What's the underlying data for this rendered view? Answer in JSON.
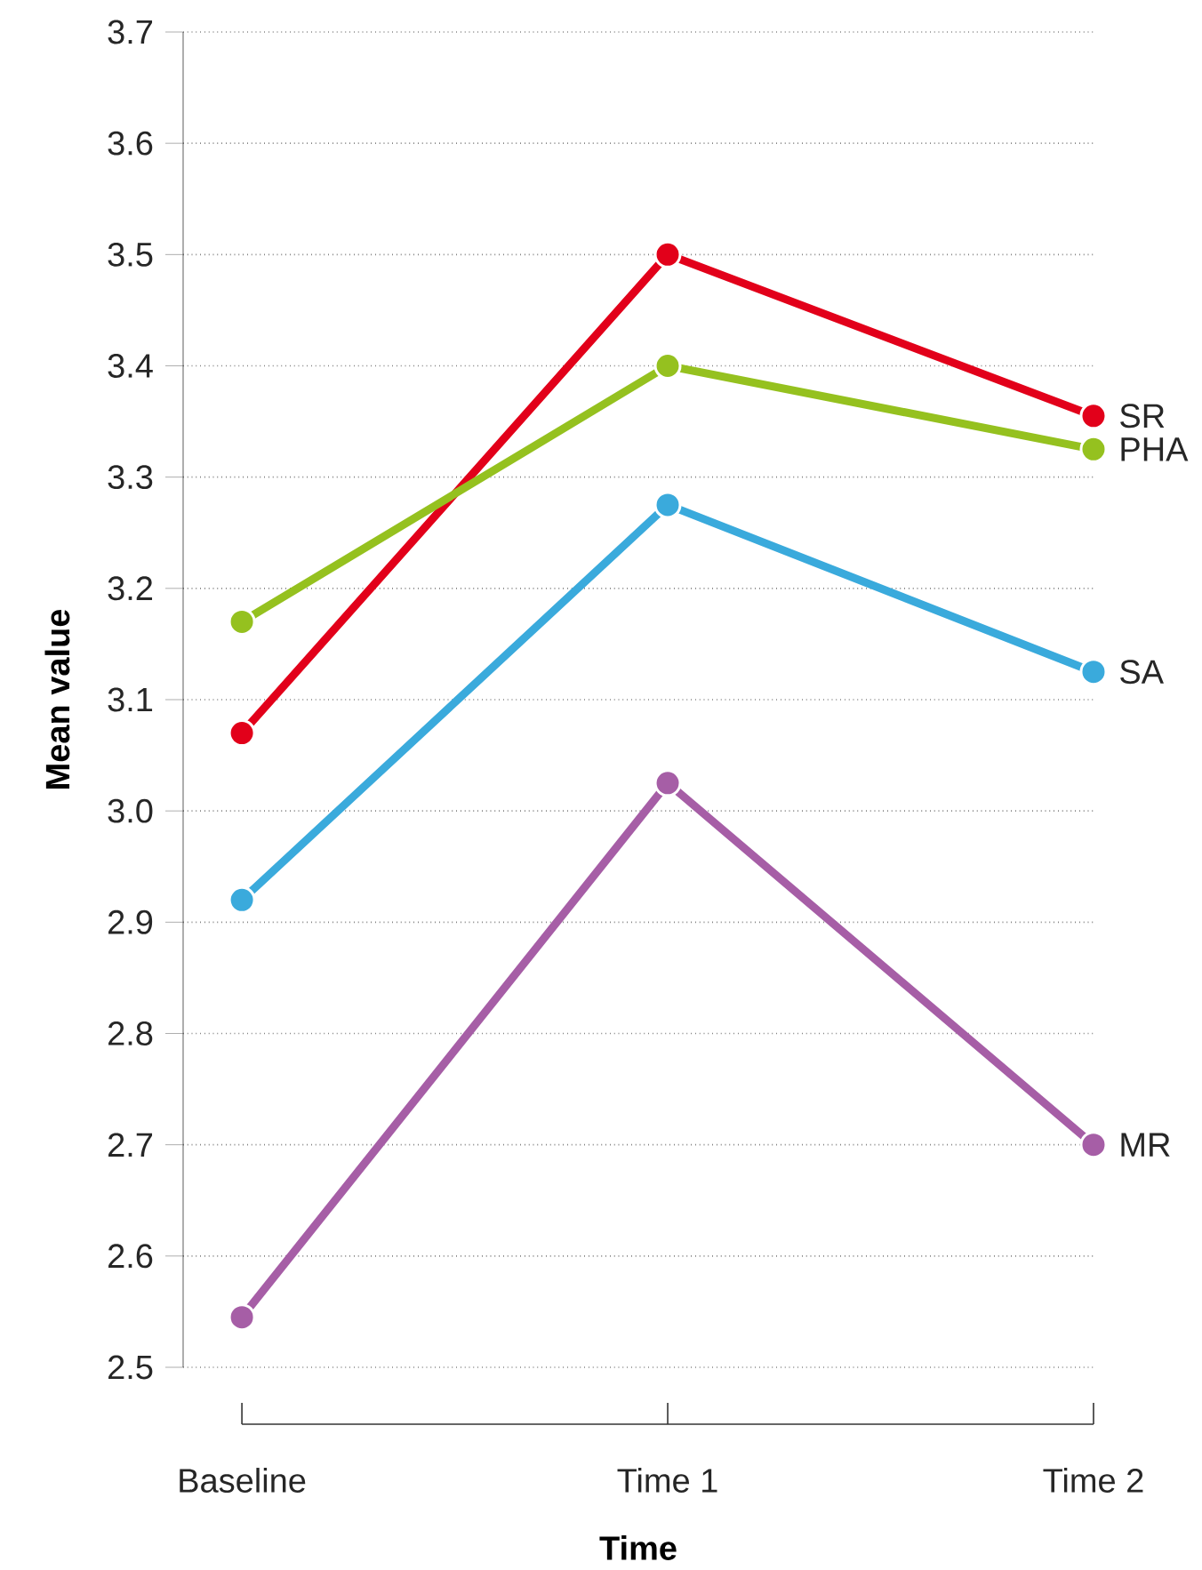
{
  "chart_data": {
    "type": "line",
    "xlabel": "Time",
    "ylabel": "Mean value",
    "categories": [
      "Baseline",
      "Time 1",
      "Time 2"
    ],
    "series": [
      {
        "name": "SR",
        "color": "#e2001a",
        "values": [
          3.07,
          3.5,
          3.355
        ]
      },
      {
        "name": "PHA",
        "color": "#95c11f",
        "values": [
          3.17,
          3.4,
          3.325
        ]
      },
      {
        "name": "SA",
        "color": "#3aaadc",
        "values": [
          2.92,
          3.275,
          3.125
        ]
      },
      {
        "name": "MR",
        "color": "#a65ea6",
        "values": [
          2.545,
          3.025,
          2.7
        ]
      }
    ],
    "ylim": [
      2.5,
      3.7
    ],
    "yticks": [
      2.5,
      2.6,
      2.7,
      2.8,
      2.9,
      {
        "value": 3.0,
        "label": "3.0"
      },
      3.1,
      3.2,
      3.3,
      3.4,
      3.5,
      3.6,
      3.7
    ],
    "grid": "y",
    "marker": "circle",
    "line_style": "solid",
    "legend": false
  }
}
